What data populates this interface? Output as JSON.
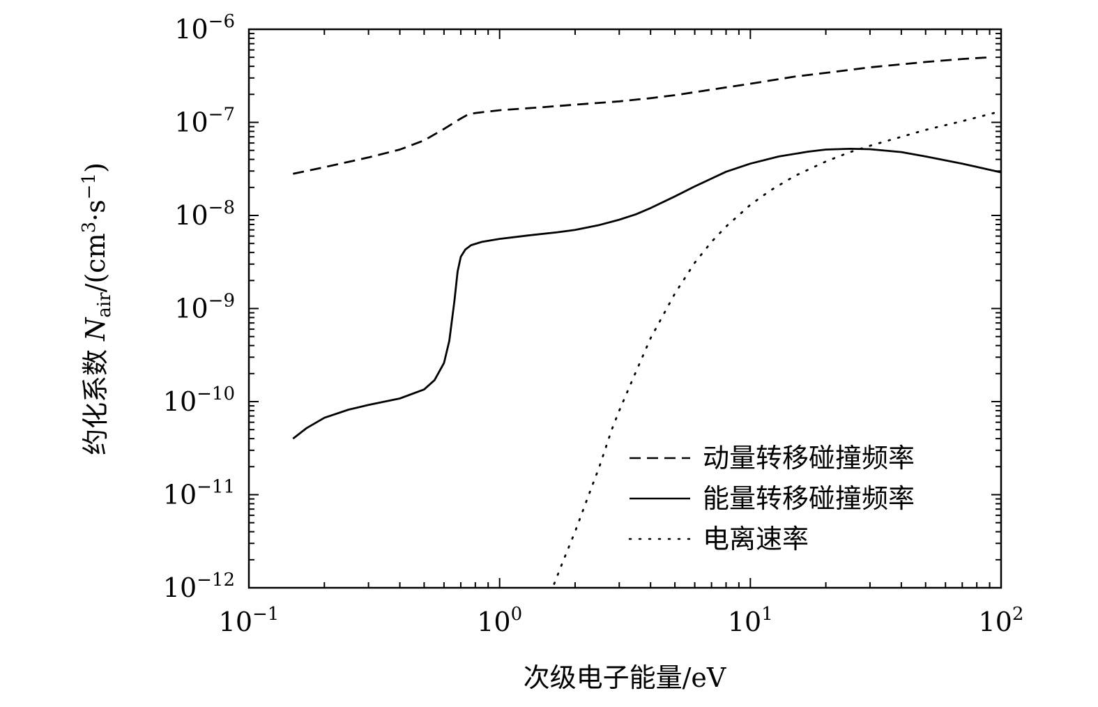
{
  "chart_data": {
    "type": "line",
    "xscale": "log",
    "yscale": "log",
    "xlim": [
      0.1,
      100
    ],
    "ylim": [
      1e-12,
      1e-06
    ],
    "xlabel": "次级电子能量/eV",
    "ylabel": "约化系数 Nair/(cm3·s−1)",
    "ylabel_parts": {
      "prefix": "约化系数 ",
      "symbol": "N",
      "subscript": "air",
      "unit_open": "/(cm",
      "unit_exp1": "3",
      "unit_mid": "·s",
      "unit_exp2": "−1",
      "unit_close": ")"
    },
    "x_ticks": [
      {
        "base": "10",
        "exp": "−1",
        "value": 0.1
      },
      {
        "base": "10",
        "exp": "0",
        "value": 1
      },
      {
        "base": "10",
        "exp": "1",
        "value": 10
      },
      {
        "base": "10",
        "exp": "2",
        "value": 100
      }
    ],
    "y_ticks": [
      {
        "base": "10",
        "exp": "−6",
        "value": 1e-06
      },
      {
        "base": "10",
        "exp": "−7",
        "value": 1e-07
      },
      {
        "base": "10",
        "exp": "−8",
        "value": 1e-08
      },
      {
        "base": "10",
        "exp": "−9",
        "value": 1e-09
      },
      {
        "base": "10",
        "exp": "−10",
        "value": 1e-10
      },
      {
        "base": "10",
        "exp": "−11",
        "value": 1e-11
      },
      {
        "base": "10",
        "exp": "−12",
        "value": 1e-12
      }
    ],
    "grid": false,
    "legend_position": "bottom-right",
    "series": [
      {
        "name": "动量转移碰撞频率",
        "style": "dashed",
        "color": "#000000",
        "x": [
          0.15,
          0.2,
          0.3,
          0.4,
          0.5,
          0.6,
          0.7,
          0.75,
          0.8,
          1.0,
          1.5,
          2.0,
          3.0,
          4.0,
          5.0,
          7.0,
          10,
          15,
          20,
          30,
          50,
          70,
          90
        ],
        "y": [
          2.8e-08,
          3.3e-08,
          4.2e-08,
          5.1e-08,
          6.4e-08,
          8.5e-08,
          1.1e-07,
          1.22e-07,
          1.26e-07,
          1.35e-07,
          1.46e-07,
          1.55e-07,
          1.68e-07,
          1.82e-07,
          1.96e-07,
          2.25e-07,
          2.6e-07,
          3.1e-07,
          3.4e-07,
          3.9e-07,
          4.45e-07,
          4.8e-07,
          5e-07
        ]
      },
      {
        "name": "能量转移碰撞频率",
        "style": "solid",
        "color": "#000000",
        "x": [
          0.15,
          0.17,
          0.2,
          0.25,
          0.3,
          0.4,
          0.5,
          0.55,
          0.6,
          0.63,
          0.66,
          0.68,
          0.7,
          0.73,
          0.77,
          0.85,
          1.0,
          1.3,
          1.7,
          2.0,
          2.5,
          3.0,
          3.5,
          4.0,
          5.0,
          6.0,
          8.0,
          10,
          13,
          17,
          20,
          25,
          30,
          40,
          50,
          70,
          100
        ],
        "y": [
          4e-11,
          5.2e-11,
          6.7e-11,
          8.2e-11,
          9.2e-11,
          1.08e-10,
          1.35e-10,
          1.7e-10,
          2.6e-10,
          4.5e-10,
          1.2e-09,
          2.5e-09,
          3.6e-09,
          4.3e-09,
          4.8e-09,
          5.2e-09,
          5.6e-09,
          6.1e-09,
          6.6e-09,
          7e-09,
          7.9e-09,
          9e-09,
          1.03e-08,
          1.2e-08,
          1.6e-08,
          2.05e-08,
          2.95e-08,
          3.6e-08,
          4.3e-08,
          4.85e-08,
          5.1e-08,
          5.2e-08,
          5.15e-08,
          4.8e-08,
          4.3e-08,
          3.6e-08,
          2.9e-08
        ]
      },
      {
        "name": "电离速率",
        "style": "dotted",
        "color": "#000000",
        "x": [
          1.65,
          1.8,
          2.0,
          2.2,
          2.5,
          2.8,
          3.0,
          3.5,
          4.0,
          5.0,
          6.0,
          7.0,
          8.0,
          10,
          12,
          15,
          20,
          25,
          30,
          40,
          50,
          70,
          100
        ],
        "y": [
          1.1e-12,
          2e-12,
          4e-12,
          8e-12,
          2e-11,
          5e-11,
          8e-11,
          2.1e-10,
          4.8e-10,
          1.45e-09,
          3.1e-09,
          5.2e-09,
          7.6e-09,
          1.3e-08,
          1.85e-08,
          2.65e-08,
          3.8e-08,
          4.8e-08,
          5.6e-08,
          7e-08,
          8.3e-08,
          1.03e-07,
          1.32e-07
        ]
      }
    ]
  }
}
